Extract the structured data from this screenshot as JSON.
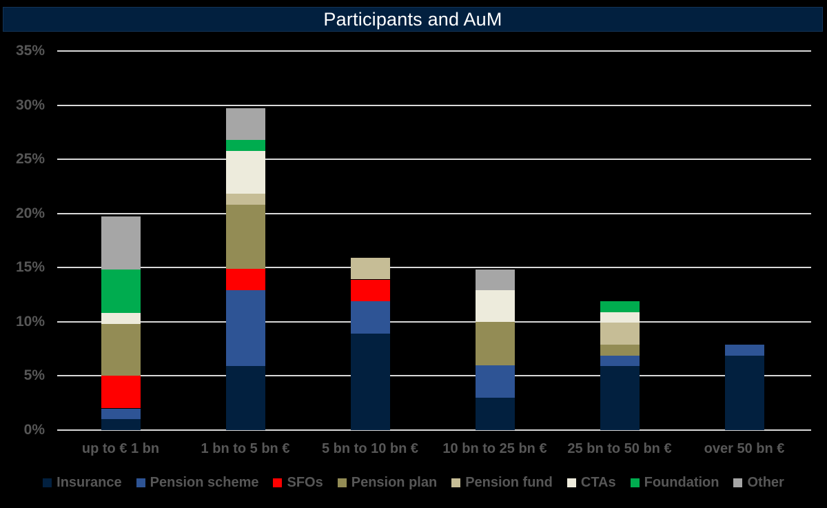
{
  "title": "Participants and AuM",
  "colors": {
    "background": "#000000",
    "title_bar_fill": "#02203F",
    "title_bar_border": "#133457",
    "title_text": "#FFFFFF",
    "gridline": "#D9D9D9",
    "axis_text": "#575757",
    "legend_text": "#575757"
  },
  "chart_data": {
    "type": "bar",
    "stacked": true,
    "title": "Participants and AuM",
    "xlabel": "",
    "ylabel": "",
    "grid": true,
    "legend_position": "bottom",
    "ylim": [
      0,
      35
    ],
    "y_ticks": [
      {
        "value": 0,
        "label": "0%"
      },
      {
        "value": 5,
        "label": "5%"
      },
      {
        "value": 10,
        "label": "10%"
      },
      {
        "value": 15,
        "label": "15%"
      },
      {
        "value": 20,
        "label": "20%"
      },
      {
        "value": 25,
        "label": "25%"
      },
      {
        "value": 30,
        "label": "30%"
      },
      {
        "value": 35,
        "label": "35%"
      }
    ],
    "categories": [
      "up to € 1 bn",
      "1 bn to 5 bn €",
      "5 bn to 10 bn €",
      "10 bn to 25 bn €",
      "25 bn to 50 bn €",
      "over 50 bn €"
    ],
    "series": [
      {
        "name": "Insurance",
        "color": "#02203F",
        "values": [
          1.0,
          5.9,
          8.9,
          3.0,
          5.9,
          6.9
        ]
      },
      {
        "name": "Pension scheme",
        "color": "#2E5495",
        "values": [
          1.0,
          7.0,
          3.0,
          3.0,
          1.0,
          1.0
        ]
      },
      {
        "name": "SFOs",
        "color": "#FF0000",
        "values": [
          3.0,
          2.0,
          2.0,
          0,
          0,
          0
        ]
      },
      {
        "name": "Pension plan",
        "color": "#938C55",
        "values": [
          4.8,
          5.9,
          0,
          4.0,
          1.0,
          0
        ]
      },
      {
        "name": "Pension fund",
        "color": "#C6BD96",
        "values": [
          0,
          1.0,
          2.0,
          0,
          2.0,
          0
        ]
      },
      {
        "name": "CTAs",
        "color": "#EDEBDC",
        "values": [
          1.0,
          4.0,
          0,
          2.9,
          1.0,
          0
        ]
      },
      {
        "name": "Foundation",
        "color": "#00AC4F",
        "values": [
          4.0,
          1.0,
          0,
          0,
          1.0,
          0
        ]
      },
      {
        "name": "Other",
        "color": "#A6A6A6",
        "values": [
          4.9,
          2.9,
          0,
          1.9,
          0,
          0
        ]
      }
    ],
    "stack_totals": [
      19.7,
      29.7,
      15.9,
      14.8,
      11.9,
      7.9
    ]
  }
}
